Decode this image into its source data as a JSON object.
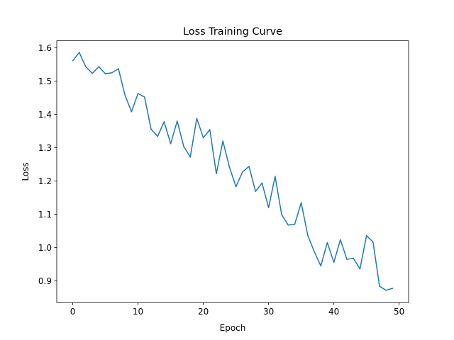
{
  "chart_data": {
    "type": "line",
    "title": "Loss Training Curve",
    "xlabel": "Epoch",
    "ylabel": "Loss",
    "xlim": [
      -2.45,
      51.45
    ],
    "ylim": [
      0.835,
      1.621
    ],
    "xticks": [
      0,
      10,
      20,
      30,
      40,
      50
    ],
    "xtick_labels": [
      "0",
      "10",
      "20",
      "30",
      "40",
      "50"
    ],
    "yticks": [
      0.9,
      1.0,
      1.1,
      1.2,
      1.3,
      1.4,
      1.5,
      1.6
    ],
    "ytick_labels": [
      "0.9",
      "1.0",
      "1.1",
      "1.2",
      "1.3",
      "1.4",
      "1.5",
      "1.6"
    ],
    "grid": false,
    "colors": {
      "line": "#1f77b4",
      "axes": "#000000"
    },
    "series": [
      {
        "x": [
          0,
          1,
          2,
          3,
          4,
          5,
          6,
          7,
          8,
          9,
          10,
          11,
          12,
          13,
          14,
          15,
          16,
          17,
          18,
          19,
          20,
          21,
          22,
          23,
          24,
          25,
          26,
          27,
          28,
          29,
          30,
          31,
          32,
          33,
          34,
          35,
          36,
          37,
          38,
          39,
          40,
          41,
          42,
          43,
          44,
          45,
          46,
          47,
          48,
          49
        ],
        "values": [
          1.561,
          1.586,
          1.543,
          1.523,
          1.543,
          1.522,
          1.525,
          1.537,
          1.458,
          1.408,
          1.463,
          1.452,
          1.356,
          1.334,
          1.378,
          1.312,
          1.38,
          1.304,
          1.272,
          1.388,
          1.33,
          1.354,
          1.222,
          1.32,
          1.242,
          1.183,
          1.227,
          1.244,
          1.169,
          1.194,
          1.12,
          1.214,
          1.099,
          1.068,
          1.07,
          1.135,
          1.037,
          0.988,
          0.945,
          1.015,
          0.956,
          1.024,
          0.965,
          0.968,
          0.936,
          1.036,
          1.017,
          0.884,
          0.872,
          0.878
        ]
      }
    ]
  }
}
